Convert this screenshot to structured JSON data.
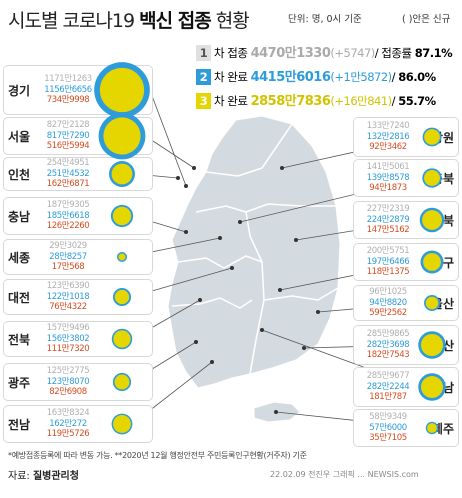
{
  "title": {
    "prefix": "시도별 코로나19 ",
    "bold": "백신 접종",
    "suffix": " 현황"
  },
  "unit_label": "단위: 명, 0시 기준",
  "unit_note": "( )안은 신규",
  "summary": [
    {
      "num": "1",
      "label": "차 접종 ",
      "total": "4470만1330",
      "delta": "(+5747)",
      "rate_label": "/ 접종률 ",
      "rate": "87.1%"
    },
    {
      "num": "2",
      "label": "차 완료 ",
      "total": "4415만6016",
      "delta": "(+1만5872)",
      "rate_label": "/ ",
      "rate": "86.0%"
    },
    {
      "num": "3",
      "label": "차 완료 ",
      "total": "2858만7836",
      "delta": "(+16만841)",
      "rate_label": "/ ",
      "rate": "55.7%"
    }
  ],
  "colors": {
    "dose1": "#b0b0b0",
    "dose2": "#2e9cdb",
    "dose3": "#e6d600",
    "map": "#d4dbe0",
    "map_line": "#ffffff"
  },
  "icons": {
    "map": "korea-map-shape"
  },
  "footnote": "*예방접종등록에 따라 변동 가능.  **2020년 12월 행정안전부 주민등록인구현황(거주자) 기준",
  "source": {
    "label": "자료: ",
    "name": "질병관리청"
  },
  "credit": "22.02.09 전진우 그래픽 ... NEWSIS.com",
  "chart_data": {
    "type": "bubble",
    "title": "시도별 코로나19 백신 접종 현황",
    "series_colors": {
      "1차 접종": "#b0b0b0",
      "2차 완료": "#2e9cdb",
      "3차 완료": "#e6d600"
    },
    "regions": [
      {
        "name": "경기",
        "dose1": "1171만1263",
        "dose2": "1156만6656",
        "dose3": "734만9998",
        "d1": 11711263,
        "d2": 11566656,
        "d3": 7349998
      },
      {
        "name": "서울",
        "dose1": "827만2128",
        "dose2": "817만7290",
        "dose3": "516만5994",
        "d1": 8272128,
        "d2": 8177290,
        "d3": 5165994
      },
      {
        "name": "인천",
        "dose1": "254만4951",
        "dose2": "251만4532",
        "dose3": "162만6871",
        "d1": 2544951,
        "d2": 2514532,
        "d3": 1626871
      },
      {
        "name": "충남",
        "dose1": "187만9305",
        "dose2": "185만6618",
        "dose3": "126만2260",
        "d1": 1879305,
        "d2": 1856618,
        "d3": 1262260
      },
      {
        "name": "세종",
        "dose1": "29만3029",
        "dose2": "28만8257",
        "dose3": "17만568",
        "d1": 293029,
        "d2": 288257,
        "d3": 170568
      },
      {
        "name": "대전",
        "dose1": "123만6390",
        "dose2": "122만1018",
        "dose3": "76만4322",
        "d1": 1236390,
        "d2": 1221018,
        "d3": 764322
      },
      {
        "name": "전북",
        "dose1": "157만9496",
        "dose2": "156만3802",
        "dose3": "111만7320",
        "d1": 1579496,
        "d2": 1563802,
        "d3": 1117320
      },
      {
        "name": "광주",
        "dose1": "125만2775",
        "dose2": "123만8070",
        "dose3": "82만6908",
        "d1": 1252775,
        "d2": 1238070,
        "d3": 826908
      },
      {
        "name": "전남",
        "dose1": "163만8324",
        "dose2": "162만272",
        "dose3": "119만5726",
        "d1": 1638324,
        "d2": 1620272,
        "d3": 1195726
      },
      {
        "name": "강원",
        "dose1": "133만7240",
        "dose2": "132만2816",
        "dose3": "92만3462",
        "d1": 1337240,
        "d2": 1322816,
        "d3": 923462
      },
      {
        "name": "충북",
        "dose1": "141만5061",
        "dose2": "139만8578",
        "dose3": "94만1873",
        "d1": 1415061,
        "d2": 1398578,
        "d3": 941873
      },
      {
        "name": "경북",
        "dose1": "227만2319",
        "dose2": "224만2879",
        "dose3": "147만5162",
        "d1": 2272319,
        "d2": 2242879,
        "d3": 1475162
      },
      {
        "name": "대구",
        "dose1": "200만5751",
        "dose2": "197만6466",
        "dose3": "118만1375",
        "d1": 2005751,
        "d2": 1976466,
        "d3": 1181375
      },
      {
        "name": "울산",
        "dose1": "96만1025",
        "dose2": "94만8820",
        "dose3": "59만2562",
        "d1": 961025,
        "d2": 948820,
        "d3": 592562
      },
      {
        "name": "부산",
        "dose1": "285만9865",
        "dose2": "282만3698",
        "dose3": "182만7543",
        "d1": 2859865,
        "d2": 2823698,
        "d3": 1827543
      },
      {
        "name": "경남",
        "dose1": "285만9677",
        "dose2": "282만2244",
        "dose3": "181만787",
        "d1": 2859677,
        "d2": 2822244,
        "d3": 1810787
      },
      {
        "name": "제주",
        "dose1": "58만9349",
        "dose2": "57만6000",
        "dose3": "35만7105",
        "d1": 589349,
        "d2": 576000,
        "d3": 357105
      }
    ]
  }
}
